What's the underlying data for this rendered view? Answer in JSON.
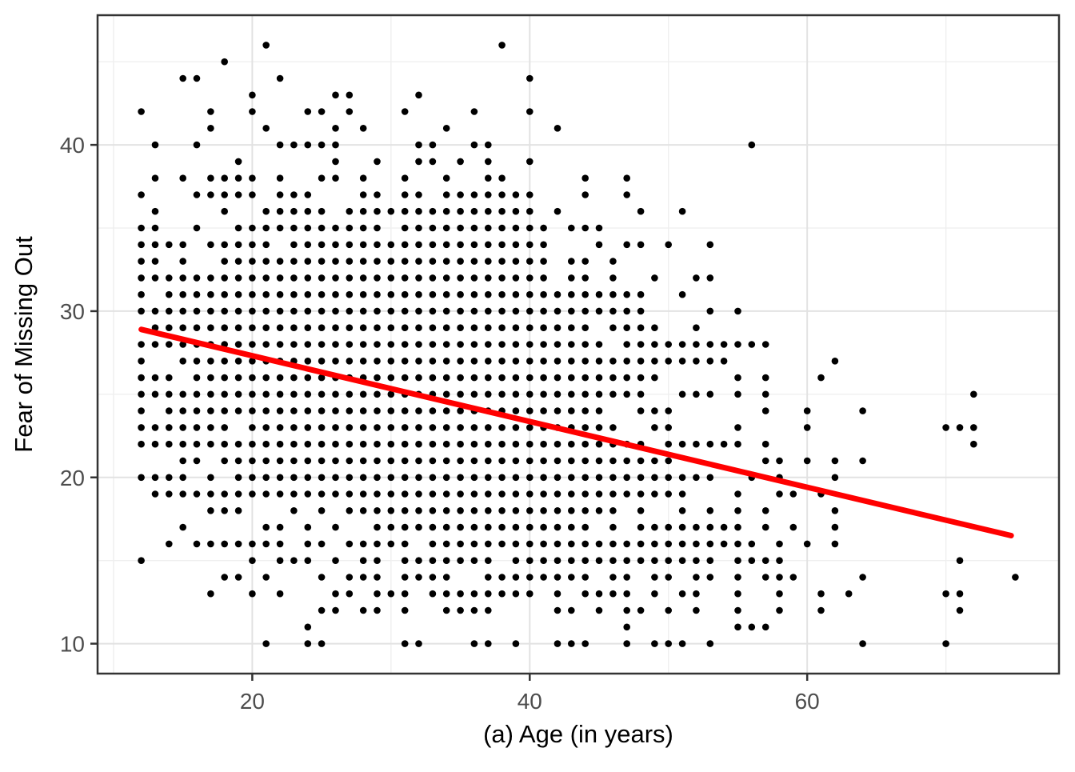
{
  "figure": {
    "xlabel": "(a) Age (in years)",
    "ylabel": "Fear of Missing Out"
  },
  "chart_data": {
    "type": "scatter",
    "title": "",
    "xlabel": "(a) Age (in years)",
    "ylabel": "Fear of Missing Out",
    "x_ticks": [
      20,
      40,
      60
    ],
    "y_ticks": [
      10,
      20,
      30,
      40
    ],
    "x_minor_gridlines": [
      10,
      30,
      50,
      70
    ],
    "y_minor_gridlines": [
      15,
      25,
      35,
      45
    ],
    "xlim": [
      8.85,
      78.15
    ],
    "ylim": [
      8.2,
      47.8
    ],
    "grid": true,
    "legend_position": "none",
    "point_color": "#000000",
    "panel_background": "#ffffff",
    "panel_border_color": "#333333",
    "major_grid_color": "#e2e2e2",
    "minor_grid_color": "#efefef",
    "tick_label_color": "#4d4d4d",
    "trend_line": {
      "type": "linear",
      "color": "#ff0000",
      "width": 7,
      "x1": 12,
      "y1": 28.9,
      "x2": 74.7,
      "y2": 16.5
    },
    "points_by_age": [
      {
        "age": 12,
        "fomo": [
          15,
          20,
          22,
          23,
          24,
          25,
          26,
          27,
          28,
          30,
          31,
          32,
          33,
          34,
          35,
          37,
          42
        ]
      },
      {
        "age": 13,
        "fomo": [
          19,
          20,
          22,
          23,
          25,
          26,
          28,
          29,
          30,
          32,
          33,
          34,
          35,
          36,
          38,
          40
        ]
      },
      {
        "age": 14,
        "fomo": [
          16,
          19,
          20,
          22,
          23,
          24,
          25,
          26,
          28,
          29,
          30,
          31,
          32,
          34
        ]
      },
      {
        "age": 15,
        "fomo": [
          17,
          19,
          20,
          21,
          22,
          23,
          24,
          25,
          27,
          28,
          29,
          30,
          31,
          32,
          33,
          34,
          38,
          44
        ]
      },
      {
        "age": 16,
        "fomo": [
          16,
          19,
          21,
          22,
          23,
          24,
          25,
          26,
          27,
          28,
          29,
          30,
          31,
          32,
          35,
          37,
          40,
          44
        ]
      },
      {
        "age": 17,
        "fomo": [
          13,
          16,
          18,
          19,
          20,
          22,
          23,
          24,
          25,
          26,
          27,
          28,
          29,
          30,
          31,
          32,
          34,
          37,
          38,
          41,
          42
        ]
      },
      {
        "age": 18,
        "fomo": [
          14,
          16,
          18,
          19,
          21,
          22,
          23,
          24,
          25,
          26,
          27,
          28,
          29,
          30,
          31,
          32,
          33,
          34,
          36,
          37,
          38,
          45
        ]
      },
      {
        "age": 19,
        "fomo": [
          14,
          16,
          18,
          19,
          20,
          21,
          22,
          24,
          25,
          26,
          27,
          28,
          29,
          30,
          31,
          32,
          33,
          34,
          35,
          37,
          38,
          39
        ]
      },
      {
        "age": 20,
        "fomo": [
          13,
          15,
          16,
          19,
          20,
          21,
          22,
          23,
          24,
          25,
          26,
          27,
          28,
          29,
          30,
          31,
          32,
          33,
          34,
          35,
          37,
          38,
          42,
          43
        ]
      },
      {
        "age": 21,
        "fomo": [
          10,
          14,
          16,
          17,
          19,
          20,
          21,
          22,
          23,
          24,
          25,
          26,
          27,
          28,
          29,
          30,
          31,
          32,
          33,
          34,
          35,
          36,
          41,
          46
        ]
      },
      {
        "age": 22,
        "fomo": [
          13,
          15,
          16,
          17,
          19,
          20,
          21,
          22,
          23,
          24,
          25,
          26,
          27,
          28,
          29,
          30,
          31,
          32,
          33,
          35,
          36,
          37,
          38,
          40,
          44
        ]
      },
      {
        "age": 23,
        "fomo": [
          15,
          18,
          19,
          20,
          21,
          22,
          23,
          24,
          25,
          26,
          27,
          28,
          29,
          30,
          31,
          32,
          33,
          34,
          35,
          36,
          37,
          40
        ]
      },
      {
        "age": 24,
        "fomo": [
          10,
          11,
          15,
          16,
          17,
          19,
          20,
          21,
          22,
          23,
          24,
          25,
          26,
          27,
          28,
          29,
          30,
          31,
          32,
          33,
          34,
          35,
          36,
          37,
          40,
          42
        ]
      },
      {
        "age": 25,
        "fomo": [
          10,
          12,
          14,
          16,
          18,
          19,
          20,
          21,
          22,
          23,
          24,
          25,
          26,
          27,
          28,
          29,
          30,
          31,
          32,
          33,
          34,
          35,
          36,
          38,
          40,
          42
        ]
      },
      {
        "age": 26,
        "fomo": [
          12,
          13,
          15,
          17,
          19,
          20,
          21,
          22,
          23,
          24,
          25,
          26,
          27,
          28,
          29,
          30,
          31,
          32,
          33,
          34,
          35,
          38,
          39,
          40,
          41,
          43
        ]
      },
      {
        "age": 27,
        "fomo": [
          13,
          14,
          16,
          18,
          19,
          20,
          21,
          22,
          23,
          24,
          25,
          26,
          27,
          28,
          29,
          30,
          31,
          32,
          33,
          34,
          35,
          36,
          42,
          43
        ]
      },
      {
        "age": 28,
        "fomo": [
          12,
          14,
          15,
          16,
          18,
          19,
          20,
          21,
          22,
          23,
          24,
          25,
          26,
          27,
          28,
          29,
          30,
          31,
          32,
          33,
          34,
          35,
          36,
          37,
          38,
          41
        ]
      },
      {
        "age": 29,
        "fomo": [
          12,
          13,
          14,
          15,
          16,
          17,
          18,
          19,
          20,
          21,
          22,
          23,
          24,
          25,
          26,
          27,
          28,
          29,
          30,
          31,
          32,
          33,
          34,
          35,
          36,
          37,
          39
        ]
      },
      {
        "age": 30,
        "fomo": [
          13,
          16,
          17,
          18,
          19,
          20,
          21,
          22,
          23,
          24,
          25,
          26,
          27,
          28,
          29,
          30,
          31,
          32,
          33,
          34,
          36
        ]
      },
      {
        "age": 31,
        "fomo": [
          10,
          12,
          13,
          14,
          15,
          16,
          17,
          18,
          19,
          20,
          21,
          22,
          23,
          24,
          25,
          26,
          27,
          28,
          29,
          30,
          31,
          32,
          33,
          34,
          35,
          36,
          37,
          38,
          42
        ]
      },
      {
        "age": 32,
        "fomo": [
          10,
          14,
          15,
          17,
          18,
          19,
          20,
          21,
          22,
          23,
          24,
          25,
          26,
          27,
          28,
          29,
          30,
          31,
          32,
          33,
          34,
          35,
          36,
          37,
          39,
          40,
          43
        ]
      },
      {
        "age": 33,
        "fomo": [
          13,
          14,
          15,
          16,
          17,
          18,
          19,
          20,
          21,
          22,
          23,
          24,
          25,
          26,
          27,
          28,
          29,
          30,
          31,
          32,
          33,
          34,
          35,
          36,
          39,
          40
        ]
      },
      {
        "age": 34,
        "fomo": [
          12,
          13,
          14,
          15,
          16,
          17,
          18,
          19,
          20,
          21,
          22,
          23,
          24,
          25,
          26,
          27,
          28,
          29,
          30,
          31,
          32,
          33,
          34,
          35,
          36,
          37,
          38,
          41
        ]
      },
      {
        "age": 35,
        "fomo": [
          12,
          13,
          15,
          16,
          17,
          18,
          19,
          20,
          21,
          22,
          23,
          24,
          25,
          26,
          27,
          28,
          29,
          30,
          31,
          32,
          33,
          34,
          35,
          36,
          37,
          39
        ]
      },
      {
        "age": 36,
        "fomo": [
          10,
          12,
          13,
          15,
          16,
          17,
          18,
          19,
          20,
          21,
          22,
          23,
          24,
          25,
          26,
          27,
          28,
          29,
          30,
          31,
          32,
          33,
          34,
          35,
          36,
          37,
          40,
          42
        ]
      },
      {
        "age": 37,
        "fomo": [
          10,
          12,
          13,
          14,
          15,
          16,
          17,
          18,
          19,
          20,
          21,
          22,
          23,
          24,
          25,
          26,
          27,
          28,
          29,
          30,
          31,
          32,
          33,
          34,
          35,
          36,
          37,
          38,
          39,
          40
        ]
      },
      {
        "age": 38,
        "fomo": [
          13,
          14,
          16,
          17,
          18,
          19,
          20,
          21,
          22,
          23,
          24,
          25,
          26,
          27,
          28,
          29,
          30,
          31,
          32,
          33,
          34,
          35,
          36,
          37,
          38,
          46
        ]
      },
      {
        "age": 39,
        "fomo": [
          10,
          13,
          14,
          15,
          16,
          17,
          18,
          19,
          20,
          21,
          22,
          23,
          24,
          25,
          26,
          27,
          28,
          29,
          30,
          31,
          32,
          33,
          34,
          35,
          36,
          37
        ]
      },
      {
        "age": 40,
        "fomo": [
          13,
          14,
          15,
          16,
          17,
          18,
          19,
          20,
          21,
          22,
          23,
          24,
          25,
          26,
          27,
          28,
          29,
          30,
          31,
          32,
          33,
          34,
          35,
          36,
          37,
          39,
          42,
          44
        ]
      },
      {
        "age": 41,
        "fomo": [
          14,
          15,
          16,
          17,
          18,
          19,
          20,
          21,
          22,
          23,
          24,
          25,
          26,
          27,
          28,
          29,
          30,
          31,
          32,
          33,
          34,
          35
        ]
      },
      {
        "age": 42,
        "fomo": [
          10,
          12,
          13,
          14,
          15,
          16,
          17,
          18,
          19,
          20,
          21,
          22,
          23,
          24,
          25,
          26,
          27,
          28,
          29,
          30,
          31,
          36,
          41
        ]
      },
      {
        "age": 43,
        "fomo": [
          10,
          12,
          14,
          15,
          16,
          17,
          18,
          19,
          20,
          21,
          22,
          23,
          24,
          25,
          26,
          27,
          28,
          29,
          30,
          31,
          32,
          33,
          35
        ]
      },
      {
        "age": 44,
        "fomo": [
          10,
          13,
          14,
          15,
          16,
          17,
          18,
          19,
          20,
          21,
          22,
          23,
          24,
          25,
          26,
          27,
          28,
          29,
          30,
          31,
          32,
          33,
          35,
          37,
          38
        ]
      },
      {
        "age": 45,
        "fomo": [
          12,
          13,
          15,
          16,
          18,
          19,
          20,
          21,
          22,
          23,
          24,
          25,
          26,
          27,
          28,
          30,
          31,
          34,
          35
        ]
      },
      {
        "age": 46,
        "fomo": [
          13,
          14,
          15,
          16,
          17,
          18,
          19,
          20,
          21,
          22,
          23,
          25,
          26,
          27,
          29,
          30,
          31,
          32,
          33
        ]
      },
      {
        "age": 47,
        "fomo": [
          10,
          11,
          12,
          13,
          14,
          15,
          16,
          19,
          20,
          21,
          22,
          25,
          26,
          27,
          28,
          29,
          30,
          31,
          34,
          37,
          38
        ]
      },
      {
        "age": 48,
        "fomo": [
          12,
          15,
          16,
          17,
          18,
          19,
          20,
          21,
          22,
          24,
          25,
          26,
          27,
          28,
          29,
          30,
          31,
          34,
          36
        ]
      },
      {
        "age": 49,
        "fomo": [
          10,
          13,
          14,
          15,
          16,
          17,
          19,
          20,
          21,
          23,
          24,
          26,
          27,
          28,
          29,
          32
        ]
      },
      {
        "age": 50,
        "fomo": [
          10,
          12,
          14,
          15,
          16,
          17,
          19,
          20,
          21,
          22,
          23,
          24,
          27,
          28,
          34
        ]
      },
      {
        "age": 51,
        "fomo": [
          10,
          13,
          15,
          16,
          17,
          18,
          19,
          20,
          22,
          25,
          27,
          28,
          31,
          36
        ]
      },
      {
        "age": 52,
        "fomo": [
          12,
          13,
          14,
          15,
          16,
          17,
          20,
          22,
          25,
          27,
          28,
          29,
          32
        ]
      },
      {
        "age": 53,
        "fomo": [
          10,
          14,
          15,
          16,
          17,
          18,
          20,
          22,
          25,
          27,
          28,
          30,
          32,
          34
        ]
      },
      {
        "age": 54,
        "fomo": [
          16,
          17,
          22,
          27,
          28
        ]
      },
      {
        "age": 55,
        "fomo": [
          11,
          12,
          13,
          14,
          15,
          16,
          17,
          18,
          19,
          22,
          23,
          25,
          26,
          28,
          30
        ]
      },
      {
        "age": 56,
        "fomo": [
          11,
          15,
          16,
          20,
          28,
          40
        ]
      },
      {
        "age": 57,
        "fomo": [
          11,
          14,
          15,
          17,
          18,
          21,
          22,
          24,
          25,
          26,
          28
        ]
      },
      {
        "age": 58,
        "fomo": [
          12,
          13,
          14,
          15,
          16,
          19,
          20,
          21
        ]
      },
      {
        "age": 59,
        "fomo": [
          14,
          17,
          19
        ]
      },
      {
        "age": 60,
        "fomo": [
          16,
          21,
          23,
          24
        ]
      },
      {
        "age": 61,
        "fomo": [
          12,
          13,
          19,
          26
        ]
      },
      {
        "age": 62,
        "fomo": [
          16,
          17,
          18,
          20,
          21,
          27
        ]
      },
      {
        "age": 63,
        "fomo": [
          13
        ]
      },
      {
        "age": 64,
        "fomo": [
          10,
          14,
          21,
          24
        ]
      },
      {
        "age": 70,
        "fomo": [
          10,
          13,
          23
        ]
      },
      {
        "age": 71,
        "fomo": [
          12,
          13,
          15,
          23
        ]
      },
      {
        "age": 72,
        "fomo": [
          22,
          23,
          25
        ]
      },
      {
        "age": 75,
        "fomo": [
          14
        ]
      }
    ]
  }
}
